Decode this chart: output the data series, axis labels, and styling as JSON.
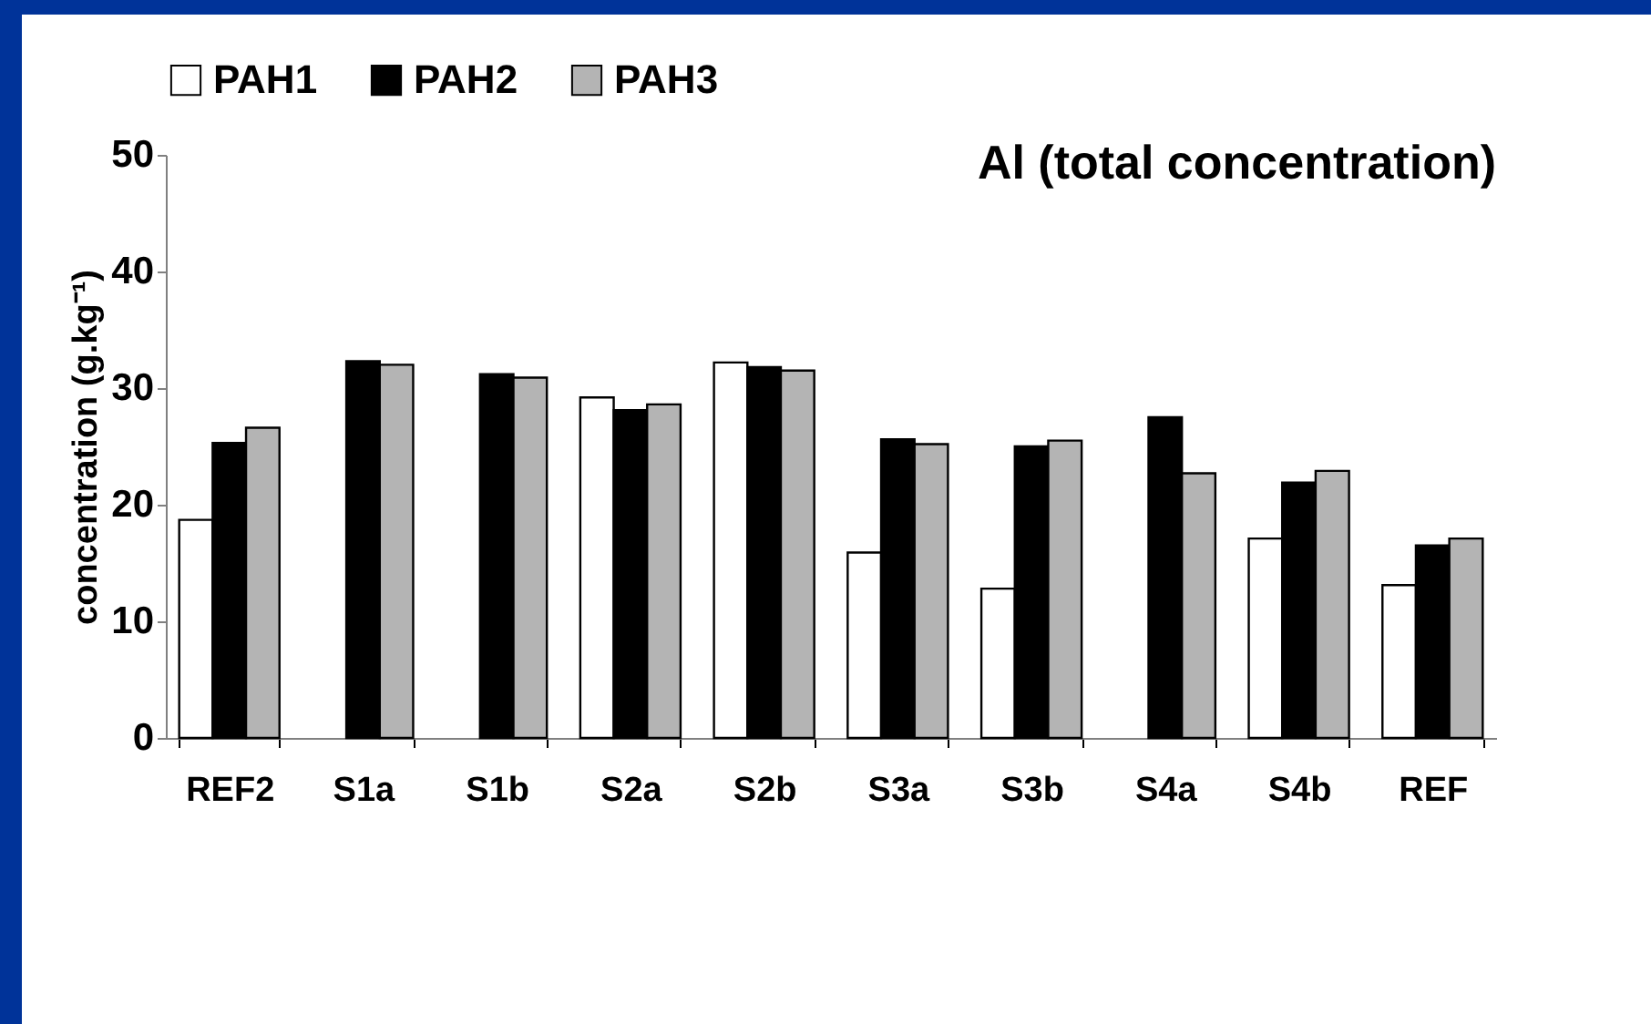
{
  "chart_data": {
    "type": "bar",
    "title": "Al (total concentration)",
    "ylabel": "concentration (g.kg⁻¹)",
    "categories": [
      "REF2",
      "S1a",
      "S1b",
      "S2a",
      "S2b",
      "S3a",
      "S3b",
      "S4a",
      "S4b",
      "REF"
    ],
    "series": [
      {
        "name": "PAH1",
        "color": "#ffffff",
        "values": [
          18.7,
          null,
          null,
          29.2,
          32.2,
          15.9,
          12.8,
          null,
          17.1,
          13.1
        ]
      },
      {
        "name": "PAH2",
        "color": "#000000",
        "values": [
          25.3,
          32.3,
          31.2,
          28.1,
          31.8,
          25.6,
          25.0,
          27.5,
          21.9,
          16.5
        ]
      },
      {
        "name": "PAH3",
        "color": "#b4b4b4",
        "values": [
          26.6,
          32.0,
          30.9,
          28.6,
          31.5,
          25.2,
          25.5,
          22.7,
          22.9,
          17.1
        ]
      }
    ],
    "ylim": [
      0,
      50
    ],
    "yticks": [
      0,
      10,
      20,
      30,
      40,
      50
    ],
    "grid": false,
    "legend": "top left"
  }
}
